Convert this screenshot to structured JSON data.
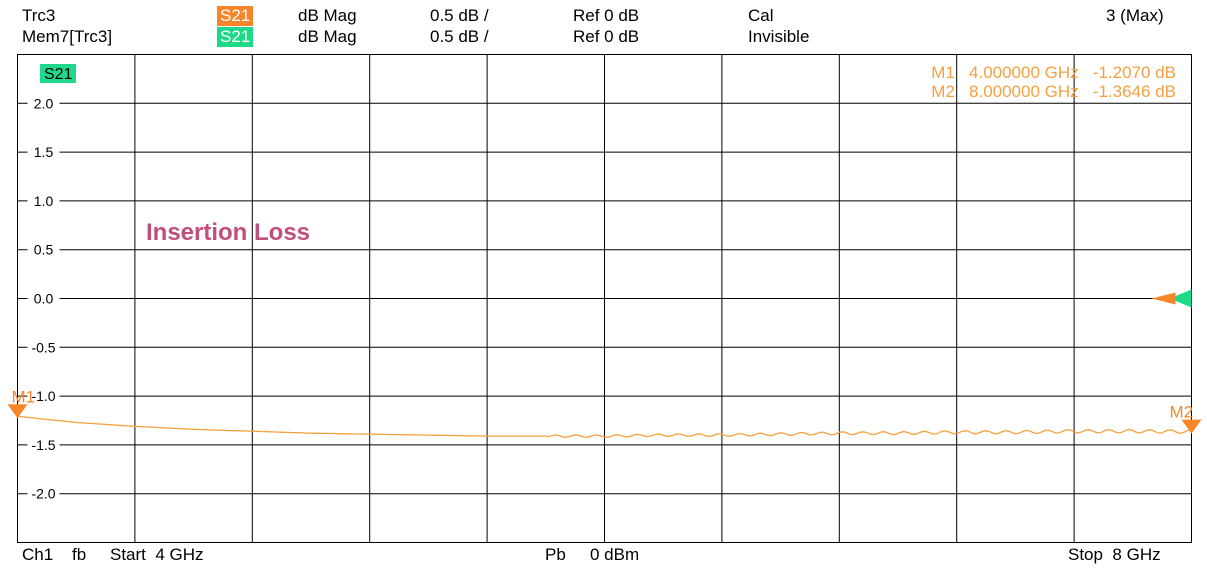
{
  "header": {
    "row1": {
      "trace": "Trc3",
      "badge": "S21",
      "badge_color": "#f7862a",
      "format": "dB Mag",
      "scale": "0.5 dB /",
      "ref": "Ref 0 dB",
      "status": "Cal",
      "right": "3 (Max)"
    },
    "row2": {
      "trace": "Mem7[Trc3]",
      "badge": "S21",
      "badge_color": "#1fd98a",
      "format": "dB Mag",
      "scale": "0.5 dB /",
      "ref": "Ref 0 dB",
      "status": "Invisible"
    }
  },
  "footer": {
    "channel": "Ch1",
    "mode": "fb",
    "start": "Start  4 GHz",
    "power_label": "Pb",
    "power_value": "0 dBm",
    "stop": "Stop  8 GHz"
  },
  "chart_data": {
    "type": "line",
    "title": "",
    "xlabel": "",
    "ylabel": "",
    "plot_badge": "S21",
    "plot_badge_color": "#1fd98a",
    "annotation": "Insertion Loss",
    "annotation_color": "#c0507a",
    "trace_color": "#f7a040",
    "xlim": [
      4,
      8
    ],
    "ylim": [
      -2.5,
      2.5
    ],
    "yticks": [
      {
        "value": 2.0,
        "label": "2.0"
      },
      {
        "value": 1.5,
        "label": "1.5"
      },
      {
        "value": 1.0,
        "label": "1.0"
      },
      {
        "value": 0.5,
        "label": "0.5"
      },
      {
        "value": 0.0,
        "label": "0.0"
      },
      {
        "value": -0.5,
        "label": "-0.5"
      },
      {
        "value": -1.0,
        "label": "-1.0"
      },
      {
        "value": -1.5,
        "label": "-1.5"
      },
      {
        "value": -2.0,
        "label": "-2.0"
      }
    ],
    "x_divisions": 10,
    "y_divisions": 10,
    "grid": true,
    "series": [
      {
        "x": [
          4.0,
          4.2,
          4.4,
          4.6,
          4.8,
          5.0,
          5.2,
          5.4,
          5.6,
          5.8,
          6.0,
          6.2,
          6.4,
          6.6,
          6.8,
          7.0,
          7.2,
          7.4,
          7.6,
          7.8,
          8.0
        ],
        "y": [
          -1.207,
          -1.27,
          -1.31,
          -1.34,
          -1.36,
          -1.38,
          -1.39,
          -1.4,
          -1.41,
          -1.41,
          -1.41,
          -1.4,
          -1.4,
          -1.39,
          -1.38,
          -1.38,
          -1.37,
          -1.37,
          -1.36,
          -1.36,
          -1.3646
        ]
      }
    ],
    "markers": [
      {
        "name": "M1",
        "x": 4.0,
        "y": -1.207,
        "readout": "M1   4.000000 GHz   -1.2070 dB"
      },
      {
        "name": "M2",
        "x": 8.0,
        "y": -1.3646,
        "readout": "M2   8.000000 GHz   -1.3646 dB"
      }
    ],
    "ref_value": 0.0
  }
}
